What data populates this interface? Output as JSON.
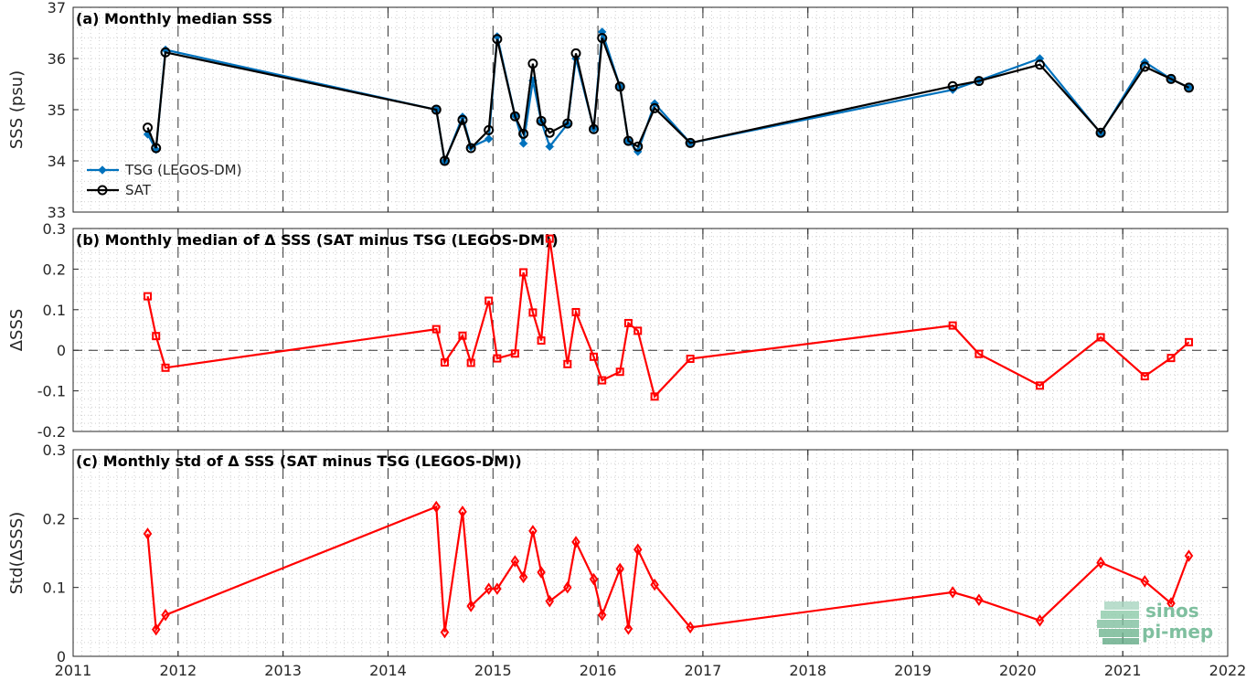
{
  "colors": {
    "tsg": "#0072bd",
    "sat": "#000000",
    "delta": "#ff0000",
    "axis": "#262626",
    "logo": "#7fbf9f"
  },
  "logo": {
    "line1": "sinos",
    "line2": "pi-mep"
  },
  "chart_data": [
    {
      "type": "line",
      "title": "(a) Monthly median SSS",
      "ylabel": "SSS (psu)",
      "xlabel": "",
      "xlim": [
        2011,
        2022
      ],
      "ylim": [
        33,
        37
      ],
      "xticks": [
        "2011",
        "2012",
        "2013",
        "2014",
        "2015",
        "2016",
        "2017",
        "2018",
        "2019",
        "2020",
        "2021",
        "2022"
      ],
      "yticks": [
        "33",
        "34",
        "35",
        "36",
        "37"
      ],
      "legend": {
        "placement": "bottom-left",
        "entries": [
          "TSG (LEGOS-DM)",
          "SAT"
        ]
      },
      "grid": true,
      "series": [
        {
          "name": "TSG (LEGOS-DM)",
          "marker": "dot",
          "x": [
            2011.71,
            2011.79,
            2011.88,
            2014.46,
            2014.54,
            2014.71,
            2014.79,
            2014.96,
            2015.04,
            2015.21,
            2015.29,
            2015.38,
            2015.46,
            2015.54,
            2015.71,
            2015.79,
            2015.96,
            2016.04,
            2016.21,
            2016.29,
            2016.38,
            2016.54,
            2016.88,
            2019.38,
            2019.63,
            2020.21,
            2020.79,
            2021.21,
            2021.46,
            2021.63
          ],
          "y": [
            34.52,
            34.22,
            36.17,
            35.0,
            33.99,
            34.86,
            34.27,
            34.43,
            36.43,
            34.88,
            34.34,
            35.57,
            34.77,
            34.28,
            34.72,
            36.0,
            34.63,
            36.52,
            35.45,
            34.39,
            34.18,
            35.12,
            34.35,
            35.39,
            35.57,
            36.0,
            34.54,
            35.93,
            35.6,
            35.43
          ]
        },
        {
          "name": "SAT",
          "marker": "circle",
          "x": [
            2011.71,
            2011.79,
            2011.88,
            2014.46,
            2014.54,
            2014.71,
            2014.79,
            2014.96,
            2015.04,
            2015.21,
            2015.29,
            2015.38,
            2015.46,
            2015.54,
            2015.71,
            2015.79,
            2015.96,
            2016.04,
            2016.21,
            2016.29,
            2016.38,
            2016.54,
            2016.88,
            2019.38,
            2019.63,
            2020.21,
            2020.79,
            2021.21,
            2021.46,
            2021.63
          ],
          "y": [
            34.65,
            34.25,
            36.12,
            35.0,
            34.0,
            34.8,
            34.25,
            34.6,
            36.38,
            34.87,
            34.53,
            35.9,
            34.78,
            34.55,
            34.73,
            36.1,
            34.62,
            36.4,
            35.45,
            34.39,
            34.28,
            35.03,
            34.35,
            35.46,
            35.56,
            35.88,
            34.55,
            35.84,
            35.6,
            35.43
          ]
        }
      ]
    },
    {
      "type": "line",
      "title": "(b) Monthly median of Δ SSS (SAT minus TSG (LEGOS-DM))",
      "ylabel": "ΔSSS",
      "xlabel": "",
      "xlim": [
        2011,
        2022
      ],
      "ylim": [
        -0.2,
        0.3
      ],
      "xticks": [],
      "yticks": [
        "-0.2",
        "-0.1",
        "0",
        "0.1",
        "0.2",
        "0.3"
      ],
      "grid": true,
      "zero_line": true,
      "series": [
        {
          "name": "",
          "marker": "square",
          "x": [
            2011.71,
            2011.79,
            2011.88,
            2014.46,
            2014.54,
            2014.71,
            2014.79,
            2014.96,
            2015.04,
            2015.21,
            2015.29,
            2015.38,
            2015.46,
            2015.54,
            2015.71,
            2015.79,
            2015.96,
            2016.04,
            2016.21,
            2016.29,
            2016.38,
            2016.54,
            2016.88,
            2019.38,
            2019.63,
            2020.21,
            2020.79,
            2021.21,
            2021.46,
            2021.63
          ],
          "y": [
            0.133,
            0.035,
            -0.043,
            0.052,
            -0.03,
            0.036,
            -0.031,
            0.122,
            -0.02,
            -0.008,
            0.192,
            0.093,
            0.024,
            0.275,
            -0.034,
            0.094,
            -0.016,
            -0.074,
            -0.053,
            0.067,
            0.048,
            -0.114,
            -0.021,
            0.061,
            -0.009,
            -0.087,
            0.032,
            -0.064,
            -0.019,
            0.02
          ]
        }
      ]
    },
    {
      "type": "line",
      "title": "(c) Monthly std of Δ SSS (SAT minus TSG (LEGOS-DM))",
      "ylabel": "Std(ΔSSS)",
      "xlabel": "",
      "xlim": [
        2011,
        2022
      ],
      "ylim": [
        0,
        0.3
      ],
      "xticks": [
        "2011",
        "2012",
        "2013",
        "2014",
        "2015",
        "2016",
        "2017",
        "2018",
        "2019",
        "2020",
        "2021",
        "2022"
      ],
      "yticks": [
        "0",
        "0.1",
        "0.2",
        "0.3"
      ],
      "grid": true,
      "series": [
        {
          "name": "",
          "marker": "diamond",
          "x": [
            2011.71,
            2011.79,
            2011.88,
            2014.46,
            2014.54,
            2014.71,
            2014.79,
            2014.96,
            2015.04,
            2015.21,
            2015.29,
            2015.38,
            2015.46,
            2015.54,
            2015.71,
            2015.79,
            2015.96,
            2016.04,
            2016.21,
            2016.29,
            2016.38,
            2016.54,
            2016.88,
            2019.38,
            2019.63,
            2020.21,
            2020.79,
            2021.21,
            2021.46,
            2021.63
          ],
          "y": [
            0.178,
            0.039,
            0.06,
            0.217,
            0.035,
            0.21,
            0.073,
            0.098,
            0.098,
            0.138,
            0.115,
            0.182,
            0.122,
            0.08,
            0.1,
            0.166,
            0.112,
            0.06,
            0.127,
            0.04,
            0.155,
            0.104,
            0.042,
            0.093,
            0.082,
            0.052,
            0.136,
            0.109,
            0.077,
            0.146
          ]
        }
      ]
    }
  ]
}
